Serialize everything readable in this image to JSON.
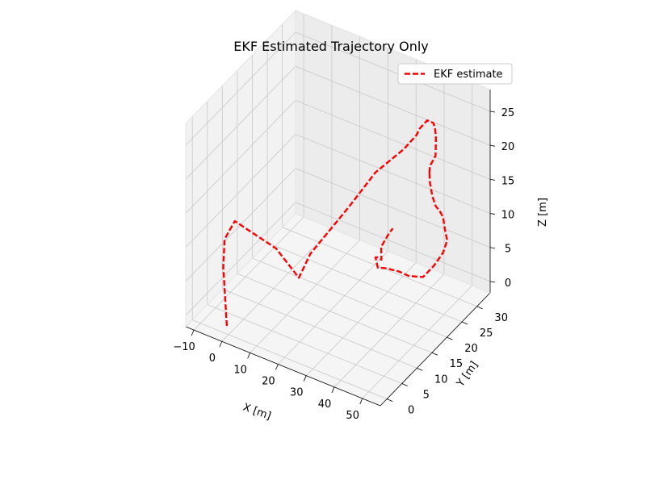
{
  "chart_data": {
    "type": "line",
    "projection": "3d",
    "title": "EKF Estimated Trajectory Only",
    "xlabel": "X [m]",
    "ylabel": "Y [m]",
    "zlabel": "Z [m]",
    "xticks": [
      -10,
      0,
      10,
      20,
      30,
      40,
      50
    ],
    "yticks": [
      0,
      5,
      10,
      15,
      20,
      25,
      30
    ],
    "zticks": [
      0,
      5,
      10,
      15,
      20,
      25
    ],
    "grid": true,
    "legend": {
      "position": "top-right",
      "entries": [
        "EKF estimate"
      ]
    },
    "series": [
      {
        "name": "EKF estimate",
        "color": "#ff0000",
        "linestyle": "dashed",
        "x": [
          -0.6,
          -5.2,
          -6.0,
          -4.5,
          8.6,
          20.0,
          22.2,
          28.7,
          31.8,
          35.3,
          36.4,
          35.1,
          35.5,
          37.3,
          38.7,
          40.3,
          40.8,
          39.9,
          40.5,
          41.1,
          41.9,
          42.3,
          42.3,
          42.5,
          42.0,
          42.1,
          42.5,
          41.5,
          39.0,
          37.0,
          33.1,
          29.7,
          26.3,
          24.3,
          23.7,
          23.8,
          24.1,
          22.5,
          23.5,
          24.3
        ],
        "y": [
          0.0,
          3.1,
          4.3,
          6.3,
          7.8,
          4.7,
          6.5,
          13.2,
          19.2,
          25.4,
          28.6,
          30.9,
          33.0,
          33.3,
          32.5,
          31.4,
          30.8,
          29.8,
          29.0,
          28.5,
          27.9,
          28.3,
          29.4,
          30.8,
          32.2,
          32.7,
          33.1,
          32.6,
          31.9,
          30.2,
          29.1,
          28.9,
          27.6,
          27.0,
          26.8,
          27.5,
          28.4,
          29.8,
          31.6,
          32.0
        ],
        "z": [
          -0.5,
          6.0,
          9.4,
          11.4,
          8.9,
          7.9,
          11.0,
          15.9,
          18.8,
          20.0,
          20.8,
          20.5,
          20.8,
          20.6,
          20.6,
          20.0,
          17.5,
          16.3,
          15.5,
          16.0,
          15.1,
          13.0,
          11.0,
          9.5,
          8.0,
          6.0,
          4.3,
          2.5,
          0.5,
          -0.7,
          -0.7,
          -0.5,
          0.0,
          0.0,
          1.5,
          1.2,
          0.5,
          1.5,
          2.9,
          3.5
        ]
      }
    ]
  }
}
